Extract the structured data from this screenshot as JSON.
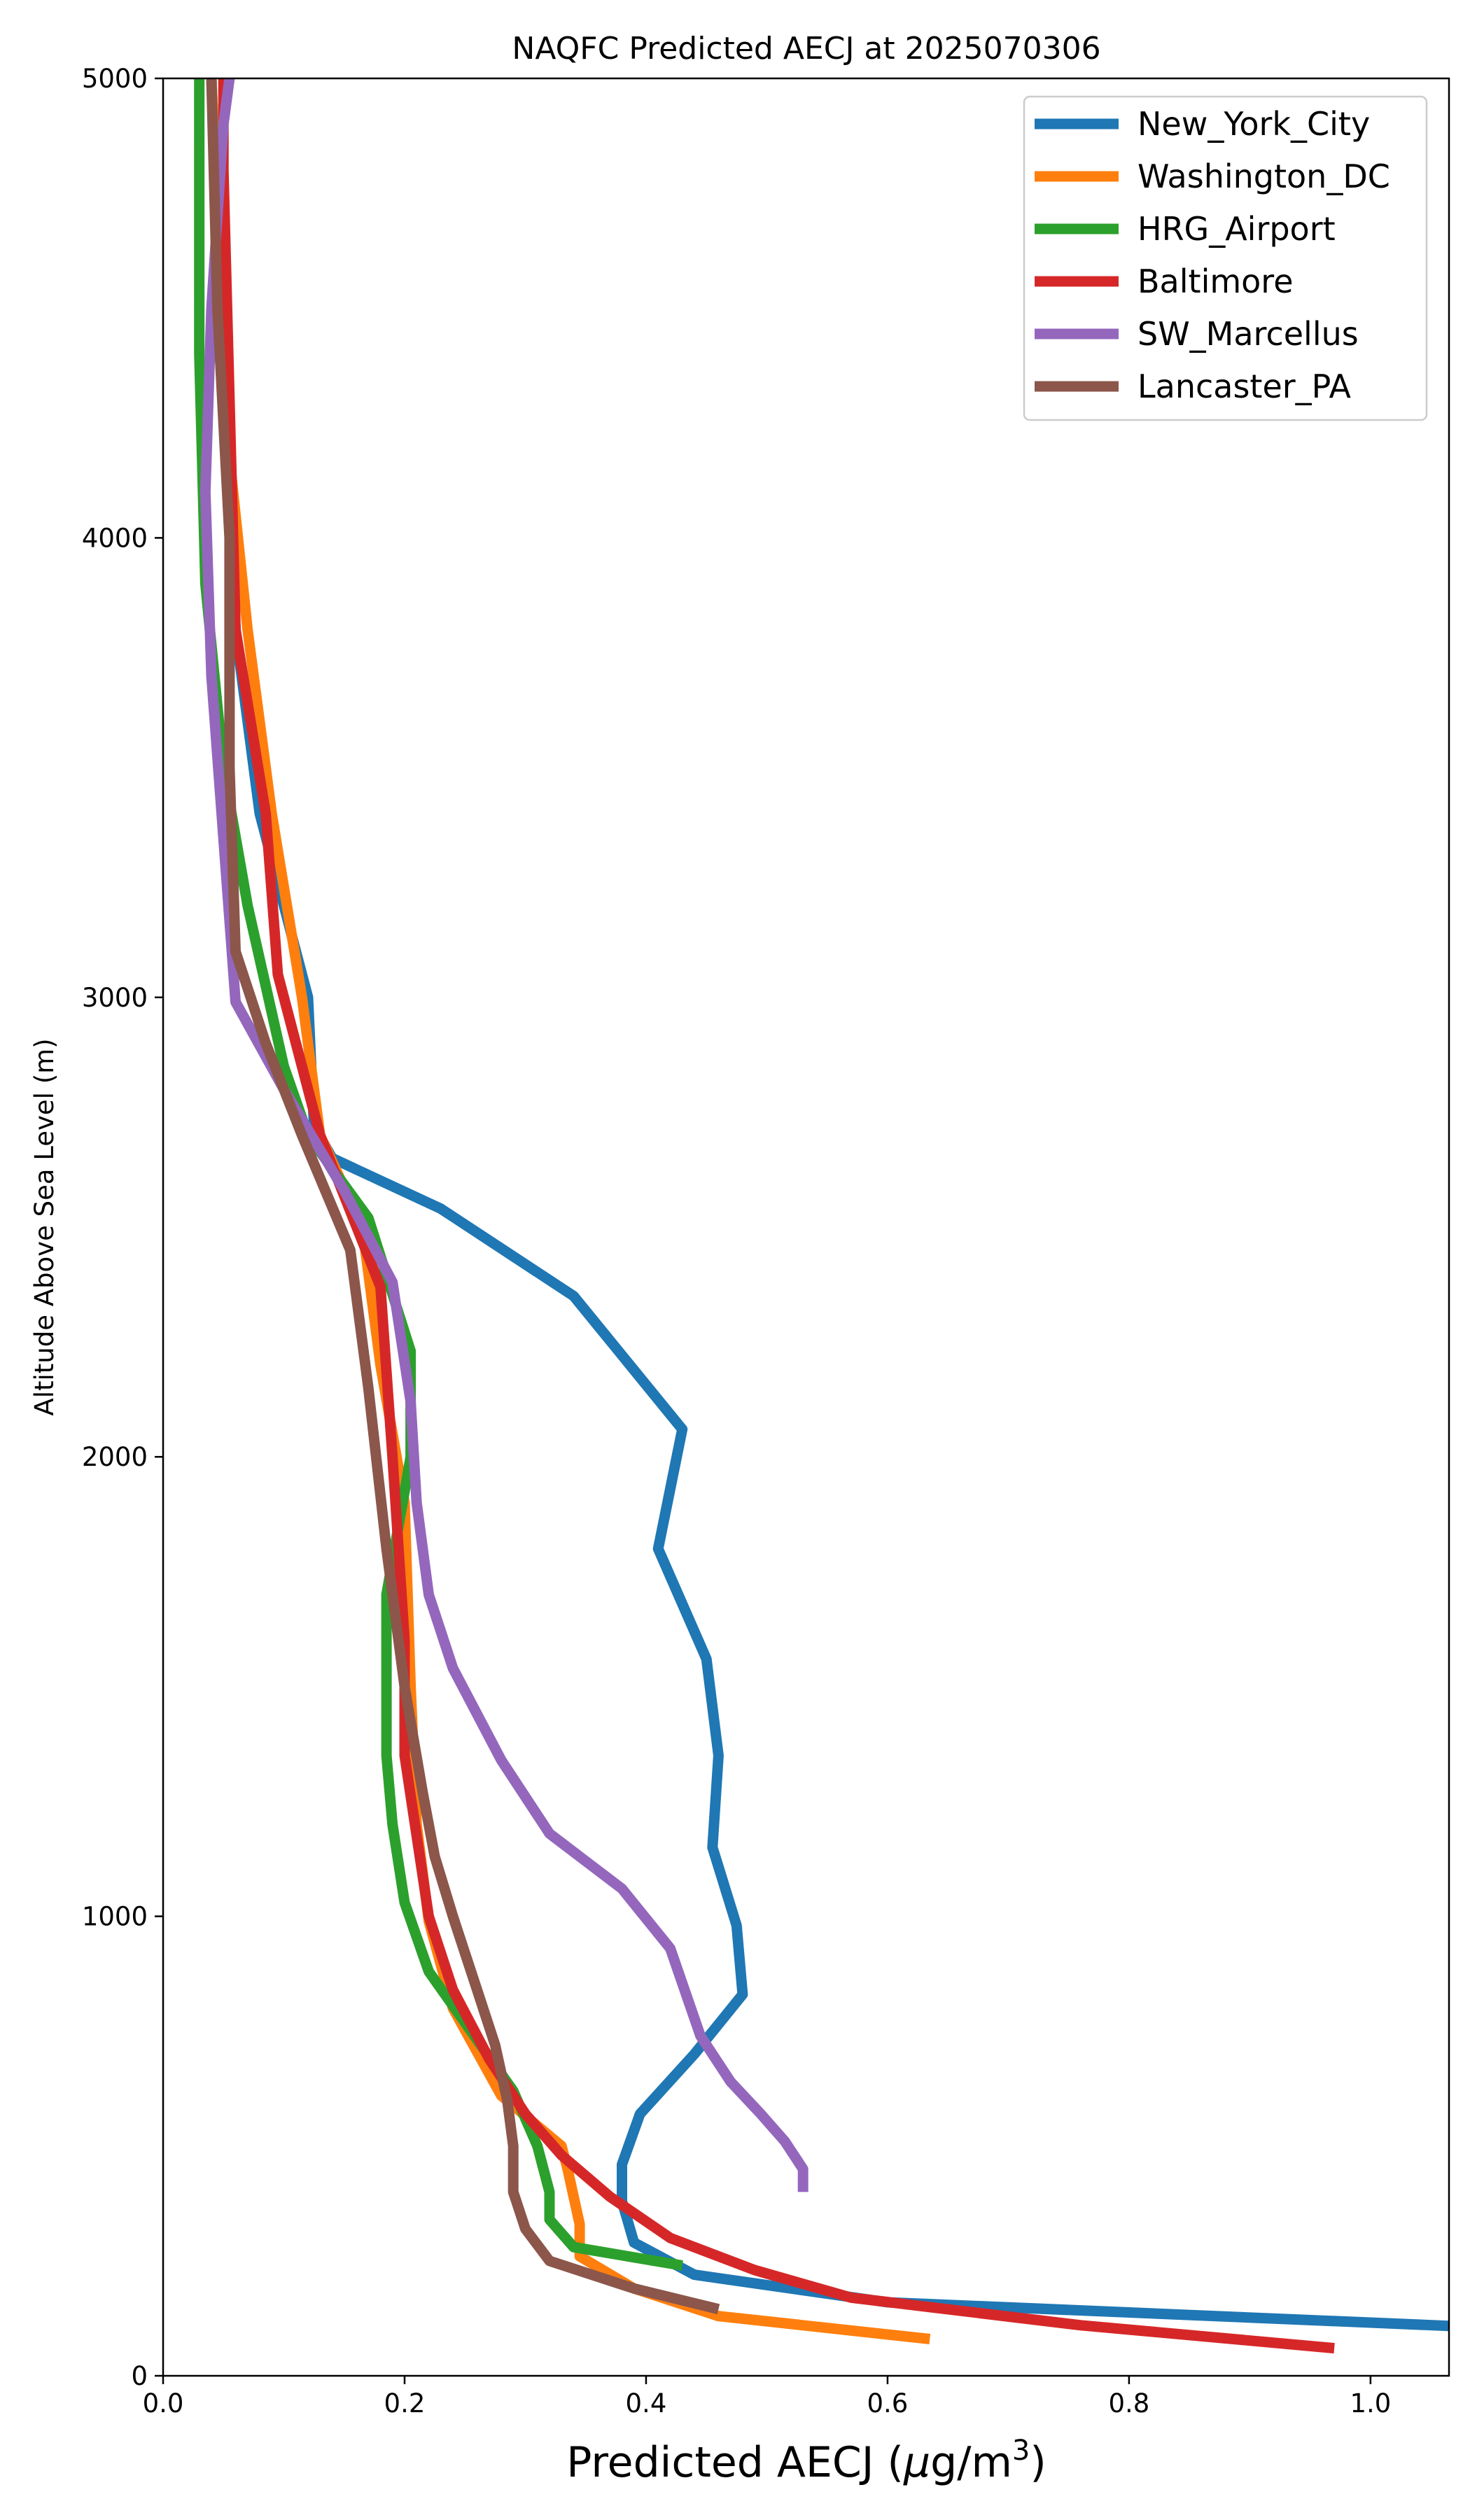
{
  "chart_data": {
    "type": "line",
    "title": "NAQFC Predicted AECJ at 2025070306",
    "xlabel_main": "Predicted AECJ (",
    "xlabel_mu": "μ",
    "xlabel_unit": "g/m",
    "xlabel_exp": "3",
    "xlabel_close": ")",
    "ylabel": "Altitude Above Sea Level (m)",
    "xlim": [
      0.0,
      1.065
    ],
    "ylim": [
      0,
      5000
    ],
    "x_ticks": [
      0.0,
      0.2,
      0.4,
      0.6,
      0.8,
      1.0
    ],
    "x_tick_labels": [
      "0.0",
      "0.2",
      "0.4",
      "0.6",
      "0.8",
      "1.0"
    ],
    "y_ticks": [
      0,
      1000,
      2000,
      3000,
      4000,
      5000
    ],
    "y_tick_labels": [
      "0",
      "1000",
      "2000",
      "3000",
      "4000",
      "5000"
    ],
    "grid": false,
    "legend_position": "top-right",
    "series": [
      {
        "name": "New_York_City",
        "color": "#1f77b4",
        "points": [
          [
            1.07,
            108
          ],
          [
            0.6,
            160
          ],
          [
            0.44,
            220
          ],
          [
            0.39,
            290
          ],
          [
            0.38,
            380
          ],
          [
            0.38,
            460
          ],
          [
            0.395,
            570
          ],
          [
            0.44,
            700
          ],
          [
            0.48,
            830
          ],
          [
            0.475,
            980
          ],
          [
            0.455,
            1150
          ],
          [
            0.46,
            1350
          ],
          [
            0.45,
            1560
          ],
          [
            0.41,
            1800
          ],
          [
            0.43,
            2060
          ],
          [
            0.34,
            2350
          ],
          [
            0.23,
            2540
          ],
          [
            0.14,
            2650
          ],
          [
            0.125,
            2720
          ],
          [
            0.12,
            3000
          ],
          [
            0.08,
            3400
          ],
          [
            0.06,
            3800
          ],
          [
            0.05,
            4300
          ],
          [
            0.045,
            4700
          ],
          [
            0.04,
            5000
          ]
        ]
      },
      {
        "name": "Washington_DC",
        "color": "#ff7f0e",
        "points": [
          [
            0.635,
            80
          ],
          [
            0.46,
            130
          ],
          [
            0.39,
            190
          ],
          [
            0.345,
            260
          ],
          [
            0.345,
            330
          ],
          [
            0.335,
            450
          ],
          [
            0.33,
            500
          ],
          [
            0.28,
            610
          ],
          [
            0.24,
            800
          ],
          [
            0.22,
            990
          ],
          [
            0.21,
            1200
          ],
          [
            0.205,
            1500
          ],
          [
            0.2,
            1900
          ],
          [
            0.18,
            2200
          ],
          [
            0.165,
            2500
          ],
          [
            0.13,
            2700
          ],
          [
            0.115,
            3000
          ],
          [
            0.09,
            3400
          ],
          [
            0.07,
            3800
          ],
          [
            0.05,
            4300
          ],
          [
            0.045,
            4700
          ],
          [
            0.04,
            5000
          ]
        ]
      },
      {
        "name": "HRG_Airport",
        "color": "#2ca02c",
        "points": [
          [
            0.43,
            240
          ],
          [
            0.34,
            280
          ],
          [
            0.32,
            340
          ],
          [
            0.32,
            400
          ],
          [
            0.31,
            500
          ],
          [
            0.29,
            620
          ],
          [
            0.22,
            880
          ],
          [
            0.2,
            1030
          ],
          [
            0.19,
            1200
          ],
          [
            0.185,
            1350
          ],
          [
            0.185,
            1550
          ],
          [
            0.185,
            1700
          ],
          [
            0.205,
            2000
          ],
          [
            0.205,
            2230
          ],
          [
            0.17,
            2520
          ],
          [
            0.12,
            2700
          ],
          [
            0.1,
            2850
          ],
          [
            0.07,
            3200
          ],
          [
            0.05,
            3500
          ],
          [
            0.035,
            3900
          ],
          [
            0.03,
            4400
          ],
          [
            0.03,
            5000
          ]
        ]
      },
      {
        "name": "Baltimore",
        "color": "#d62728",
        "points": [
          [
            0.97,
            60
          ],
          [
            0.76,
            110
          ],
          [
            0.57,
            170
          ],
          [
            0.49,
            230
          ],
          [
            0.42,
            300
          ],
          [
            0.37,
            390
          ],
          [
            0.33,
            480
          ],
          [
            0.3,
            570
          ],
          [
            0.27,
            690
          ],
          [
            0.24,
            840
          ],
          [
            0.22,
            1000
          ],
          [
            0.2,
            1350
          ],
          [
            0.2,
            1600
          ],
          [
            0.19,
            2000
          ],
          [
            0.18,
            2370
          ],
          [
            0.13,
            2700
          ],
          [
            0.095,
            3050
          ],
          [
            0.085,
            3400
          ],
          [
            0.06,
            3800
          ],
          [
            0.055,
            4300
          ],
          [
            0.05,
            4800
          ],
          [
            0.05,
            5000
          ]
        ]
      },
      {
        "name": "SW_Marcellus",
        "color": "#9467bd",
        "points": [
          [
            0.53,
            400
          ],
          [
            0.53,
            450
          ],
          [
            0.515,
            510
          ],
          [
            0.495,
            570
          ],
          [
            0.47,
            640
          ],
          [
            0.445,
            740
          ],
          [
            0.42,
            930
          ],
          [
            0.38,
            1060
          ],
          [
            0.32,
            1180
          ],
          [
            0.28,
            1340
          ],
          [
            0.24,
            1540
          ],
          [
            0.22,
            1700
          ],
          [
            0.21,
            1900
          ],
          [
            0.205,
            2120
          ],
          [
            0.19,
            2380
          ],
          [
            0.15,
            2580
          ],
          [
            0.1,
            2800
          ],
          [
            0.06,
            2990
          ],
          [
            0.04,
            3700
          ],
          [
            0.035,
            4100
          ],
          [
            0.04,
            4500
          ],
          [
            0.05,
            4900
          ],
          [
            0.055,
            5000
          ]
        ]
      },
      {
        "name": "Lancaster_PA",
        "color": "#8c564b",
        "points": [
          [
            0.46,
            145
          ],
          [
            0.39,
            190
          ],
          [
            0.32,
            250
          ],
          [
            0.3,
            320
          ],
          [
            0.29,
            400
          ],
          [
            0.29,
            500
          ],
          [
            0.285,
            600
          ],
          [
            0.275,
            720
          ],
          [
            0.26,
            840
          ],
          [
            0.24,
            1000
          ],
          [
            0.225,
            1130
          ],
          [
            0.215,
            1270
          ],
          [
            0.2,
            1500
          ],
          [
            0.185,
            1800
          ],
          [
            0.17,
            2150
          ],
          [
            0.155,
            2450
          ],
          [
            0.115,
            2700
          ],
          [
            0.085,
            2900
          ],
          [
            0.06,
            3100
          ],
          [
            0.055,
            3500
          ],
          [
            0.055,
            4000
          ],
          [
            0.045,
            4500
          ],
          [
            0.04,
            5000
          ]
        ]
      }
    ]
  }
}
